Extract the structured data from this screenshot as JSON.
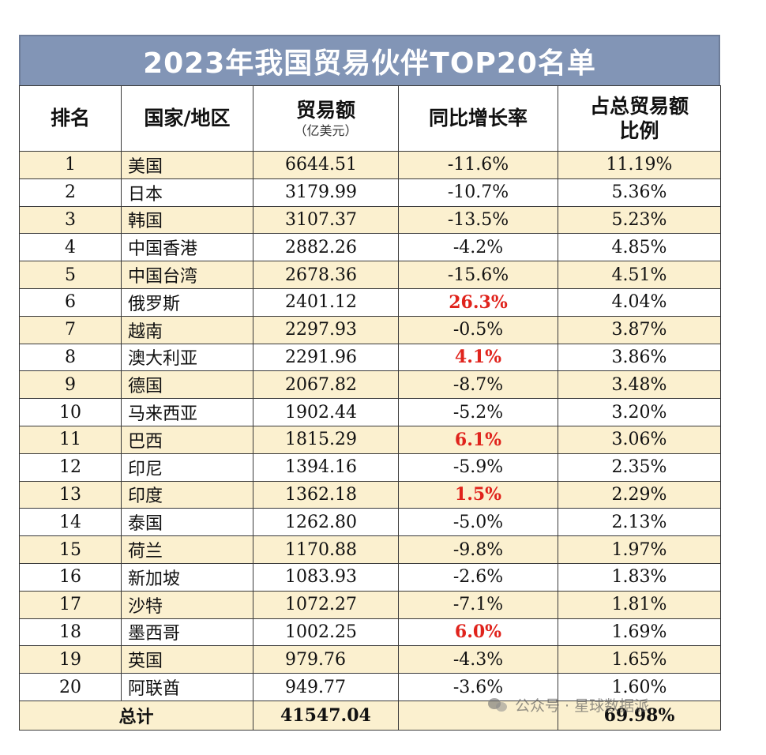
{
  "title": "2023年我国贸易伙伴TOP20名单",
  "headers": {
    "rank": "排名",
    "country": "国家/地区",
    "trade": "贸易额",
    "trade_unit": "（亿美元）",
    "growth": "同比增长率",
    "share_line1": "占总贸易额",
    "share_line2": "比例"
  },
  "rows": [
    {
      "rank": "1",
      "country": "美国",
      "trade": "6644.51",
      "growth": "-11.6%",
      "share": "11.19%",
      "positive": false
    },
    {
      "rank": "2",
      "country": "日本",
      "trade": "3179.99",
      "growth": "-10.7%",
      "share": "5.36%",
      "positive": false
    },
    {
      "rank": "3",
      "country": "韩国",
      "trade": "3107.37",
      "growth": "-13.5%",
      "share": "5.23%",
      "positive": false
    },
    {
      "rank": "4",
      "country": "中国香港",
      "trade": "2882.26",
      "growth": "-4.2%",
      "share": "4.85%",
      "positive": false
    },
    {
      "rank": "5",
      "country": "中国台湾",
      "trade": "2678.36",
      "growth": "-15.6%",
      "share": "4.51%",
      "positive": false
    },
    {
      "rank": "6",
      "country": "俄罗斯",
      "trade": "2401.12",
      "growth": "26.3%",
      "share": "4.04%",
      "positive": true
    },
    {
      "rank": "7",
      "country": "越南",
      "trade": "2297.93",
      "growth": "-0.5%",
      "share": "3.87%",
      "positive": false
    },
    {
      "rank": "8",
      "country": "澳大利亚",
      "trade": "2291.96",
      "growth": "4.1%",
      "share": "3.86%",
      "positive": true
    },
    {
      "rank": "9",
      "country": "德国",
      "trade": "2067.82",
      "growth": "-8.7%",
      "share": "3.48%",
      "positive": false
    },
    {
      "rank": "10",
      "country": "马来西亚",
      "trade": "1902.44",
      "growth": "-5.2%",
      "share": "3.20%",
      "positive": false
    },
    {
      "rank": "11",
      "country": "巴西",
      "trade": "1815.29",
      "growth": "6.1%",
      "share": "3.06%",
      "positive": true
    },
    {
      "rank": "12",
      "country": "印尼",
      "trade": "1394.16",
      "growth": "-5.9%",
      "share": "2.35%",
      "positive": false
    },
    {
      "rank": "13",
      "country": "印度",
      "trade": "1362.18",
      "growth": "1.5%",
      "share": "2.29%",
      "positive": true
    },
    {
      "rank": "14",
      "country": "泰国",
      "trade": "1262.80",
      "growth": "-5.0%",
      "share": "2.13%",
      "positive": false
    },
    {
      "rank": "15",
      "country": "荷兰",
      "trade": "1170.88",
      "growth": "-9.8%",
      "share": "1.97%",
      "positive": false
    },
    {
      "rank": "16",
      "country": "新加坡",
      "trade": "1083.93",
      "growth": "-2.6%",
      "share": "1.83%",
      "positive": false
    },
    {
      "rank": "17",
      "country": "沙特",
      "trade": "1072.27",
      "growth": "-7.1%",
      "share": "1.81%",
      "positive": false
    },
    {
      "rank": "18",
      "country": "墨西哥",
      "trade": "1002.25",
      "growth": "6.0%",
      "share": "1.69%",
      "positive": true
    },
    {
      "rank": "19",
      "country": "英国",
      "trade": "979.76",
      "growth": "-4.3%",
      "share": "1.65%",
      "positive": false
    },
    {
      "rank": "20",
      "country": "阿联酋",
      "trade": "949.77",
      "growth": "-3.6%",
      "share": "1.60%",
      "positive": false
    }
  ],
  "total": {
    "label": "总计",
    "trade": "41547.04",
    "share": "69.98%"
  },
  "watermark": "公众号 · 星球数据派",
  "colors": {
    "title_bg": "#8295b6",
    "stripe": "#fbf0cf",
    "positive_text": "#e0231c"
  }
}
